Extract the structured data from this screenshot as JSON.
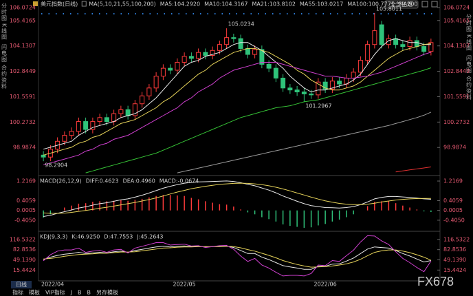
{
  "title": "美元指数(日线)",
  "top_button": "全部主题",
  "side_tabs": [
    "分时图",
    "K线图",
    "闪电图",
    "合约资料"
  ],
  "timeframe": "日线",
  "toolbar": [
    "指标",
    "模板",
    "VIP指标",
    "J",
    "B",
    "B",
    "另存模板"
  ],
  "watermark": "FX678",
  "chart_data": [
    {
      "type": "candlestick",
      "indicator": "MA(5,10,21,55,100,200)",
      "categories": [
        "2022/04",
        null,
        null,
        null,
        null,
        null,
        null,
        null,
        null,
        null,
        null,
        null,
        null,
        null,
        null,
        null,
        null,
        null,
        null,
        null,
        "2022/05",
        null,
        null,
        null,
        null,
        null,
        null,
        null,
        null,
        null,
        null,
        null,
        null,
        null,
        null,
        null,
        null,
        null,
        null,
        null,
        "2022/06",
        null,
        null,
        null,
        null,
        null,
        null,
        null,
        null,
        null,
        null,
        null,
        null,
        null,
        null,
        null
      ],
      "open": [
        98.6,
        98.5,
        98.9,
        99.3,
        99.6,
        99.8,
        100.3,
        99.9,
        100.3,
        100.5,
        100.3,
        100.7,
        100.9,
        100.6,
        101.2,
        101.6,
        102.0,
        102.6,
        103.0,
        102.9,
        103.3,
        103.6,
        103.5,
        103.8,
        103.65,
        103.9,
        104.2,
        104.55,
        104.5,
        104.0,
        103.7,
        103.95,
        103.2,
        103.0,
        102.5,
        102.0,
        101.9,
        101.8,
        101.7,
        101.65,
        102.3,
        101.95,
        102.35,
        102.2,
        102.5,
        102.8,
        103.4,
        104.2,
        105.2,
        104.2,
        104.5,
        104.2,
        104.1,
        104.4,
        104.1,
        103.85
      ],
      "high": [
        98.8,
        99.1,
        99.5,
        99.8,
        100.0,
        100.5,
        100.5,
        100.5,
        100.7,
        100.7,
        100.9,
        101.1,
        101.1,
        101.4,
        101.8,
        102.2,
        102.8,
        103.2,
        103.2,
        103.5,
        103.8,
        103.8,
        104.0,
        104.0,
        104.1,
        104.4,
        105.0234,
        104.75,
        104.7,
        104.2,
        104.15,
        104.15,
        103.4,
        103.2,
        102.7,
        102.2,
        102.1,
        102.0,
        101.9,
        102.5,
        102.5,
        102.55,
        102.55,
        102.7,
        103.0,
        103.6,
        104.4,
        105.8011,
        105.4,
        104.7,
        104.7,
        104.4,
        104.6,
        104.6,
        104.3,
        104.5
      ],
      "low": [
        98.2904,
        98.3,
        98.7,
        99.1,
        99.4,
        99.6,
        99.7,
        99.7,
        100.1,
        100.1,
        100.1,
        100.5,
        100.4,
        100.4,
        101.0,
        101.4,
        101.8,
        102.4,
        102.7,
        102.7,
        103.1,
        103.3,
        103.3,
        103.45,
        103.45,
        103.7,
        104.0,
        104.3,
        103.8,
        103.5,
        103.5,
        103.0,
        102.8,
        102.3,
        101.8,
        101.7,
        101.6,
        101.2967,
        101.45,
        101.45,
        101.75,
        101.75,
        102.0,
        102.0,
        102.3,
        102.6,
        103.2,
        104.0,
        104.0,
        104.0,
        104.0,
        103.9,
        103.9,
        103.9,
        103.65,
        103.65
      ],
      "close": [
        98.5,
        98.9,
        99.3,
        99.6,
        99.8,
        100.3,
        99.9,
        100.3,
        100.5,
        100.3,
        100.7,
        100.9,
        100.6,
        101.2,
        101.6,
        102.0,
        102.6,
        103.0,
        102.9,
        103.3,
        103.6,
        103.5,
        103.8,
        103.65,
        103.9,
        104.2,
        104.55,
        104.5,
        104.0,
        103.7,
        103.95,
        103.2,
        103.0,
        102.5,
        102.0,
        101.9,
        101.8,
        101.7,
        101.65,
        102.3,
        101.95,
        102.35,
        102.2,
        102.5,
        102.8,
        103.4,
        104.2,
        104.9,
        104.2,
        104.5,
        104.2,
        104.1,
        104.4,
        104.1,
        103.85,
        104.3
      ],
      "up_color": "#ff3b3b",
      "down_color": "#2fc27a",
      "ylim": [
        97.67,
        106.0724
      ],
      "yticks": [
        106.0724,
        105.4165,
        104.1307,
        102.8449,
        101.5591,
        100.2732,
        98.9874
      ],
      "annotations": [
        "105.0234",
        "105.8011",
        "101.2967",
        "98.2904"
      ],
      "series": [
        {
          "name": "MA5:104.2920",
          "color": "#e8e8e8",
          "values": [
            98.9,
            99.0,
            99.1,
            99.2,
            99.3,
            99.6,
            99.8,
            100.0,
            100.1,
            100.2,
            100.3,
            100.5,
            100.6,
            100.7,
            100.9,
            101.2,
            101.5,
            101.9,
            102.3,
            102.7,
            103.1,
            103.3,
            103.4,
            103.6,
            103.7,
            103.8,
            104.0,
            104.2,
            104.3,
            104.3,
            104.1,
            103.9,
            103.6,
            103.3,
            103.0,
            102.6,
            102.3,
            102.0,
            101.8,
            101.9,
            101.9,
            102.0,
            102.1,
            102.2,
            102.4,
            102.7,
            103.2,
            103.7,
            104.1,
            104.4,
            104.5,
            104.4,
            104.3,
            104.3,
            104.2,
            104.2
          ]
        },
        {
          "name": "MA10:104.3167",
          "color": "#e6d35a",
          "values": [
            98.6,
            98.7,
            98.8,
            98.9,
            99.0,
            99.2,
            99.3,
            99.5,
            99.6,
            99.8,
            100.0,
            100.2,
            100.3,
            100.4,
            100.6,
            100.8,
            101.0,
            101.3,
            101.5,
            101.8,
            102.1,
            102.4,
            102.7,
            102.9,
            103.2,
            103.4,
            103.6,
            103.8,
            103.9,
            104.0,
            104.0,
            103.9,
            103.8,
            103.6,
            103.4,
            103.2,
            102.9,
            102.7,
            102.4,
            102.2,
            102.0,
            101.9,
            101.9,
            102.0,
            102.1,
            102.3,
            102.6,
            102.9,
            103.2,
            103.5,
            103.7,
            103.9,
            104.0,
            104.1,
            104.2,
            104.25
          ]
        },
        {
          "name": "MA21:103.8102",
          "color": "#d040d0",
          "values": [
            98.1,
            98.2,
            98.3,
            98.4,
            98.5,
            98.6,
            98.8,
            98.9,
            99.1,
            99.2,
            99.4,
            99.5,
            99.6,
            99.8,
            100.0,
            100.2,
            100.4,
            100.6,
            100.8,
            101.0,
            101.3,
            101.5,
            101.8,
            102.0,
            102.2,
            102.5,
            102.7,
            102.9,
            103.0,
            103.1,
            103.2,
            103.3,
            103.3,
            103.3,
            103.2,
            103.1,
            103.0,
            102.9,
            102.8,
            102.7,
            102.6,
            102.6,
            102.55,
            102.5,
            102.5,
            102.55,
            102.6,
            102.7,
            102.8,
            102.95,
            103.1,
            103.25,
            103.4,
            103.55,
            103.7,
            103.81
          ]
        },
        {
          "name": "MA55:103.0217",
          "color": "#36c236",
          "values": [
            null,
            null,
            null,
            null,
            null,
            null,
            97.7,
            97.8,
            97.9,
            98.0,
            98.1,
            98.2,
            98.3,
            98.4,
            98.5,
            98.6,
            98.7,
            98.85,
            99.0,
            99.15,
            99.3,
            99.45,
            99.6,
            99.75,
            99.9,
            100.05,
            100.2,
            100.35,
            100.5,
            100.6,
            100.7,
            100.8,
            100.9,
            101.0,
            101.05,
            101.1,
            101.2,
            101.3,
            101.35,
            101.4,
            101.5,
            101.6,
            101.7,
            101.8,
            101.9,
            102.0,
            102.1,
            102.2,
            102.3,
            102.4,
            102.5,
            102.6,
            102.7,
            102.8,
            102.9,
            103.0217
          ]
        },
        {
          "name": "MA100:100.7771",
          "color": "#9a9a9a",
          "values": [
            null,
            null,
            null,
            null,
            null,
            null,
            null,
            null,
            null,
            null,
            null,
            null,
            null,
            null,
            null,
            null,
            null,
            null,
            null,
            97.7,
            97.78,
            97.86,
            97.94,
            98.02,
            98.1,
            98.18,
            98.26,
            98.34,
            98.42,
            98.5,
            98.58,
            98.66,
            98.74,
            98.82,
            98.9,
            98.98,
            99.06,
            99.14,
            99.22,
            99.3,
            99.38,
            99.46,
            99.54,
            99.62,
            99.7,
            99.78,
            99.86,
            99.94,
            100.02,
            100.1,
            100.2,
            100.3,
            100.4,
            100.5,
            100.62,
            100.7771
          ]
        },
        {
          "name": "MA200",
          "color": "#e03030",
          "values": [
            null,
            null,
            null,
            null,
            null,
            null,
            null,
            null,
            null,
            null,
            null,
            null,
            null,
            null,
            null,
            null,
            null,
            null,
            null,
            null,
            null,
            null,
            null,
            null,
            null,
            null,
            null,
            null,
            null,
            null,
            null,
            null,
            null,
            null,
            null,
            null,
            null,
            null,
            null,
            null,
            null,
            null,
            null,
            null,
            null,
            null,
            null,
            null,
            null,
            null,
            97.75,
            97.8,
            97.85,
            97.9,
            97.95,
            98.0
          ]
        }
      ]
    },
    {
      "type": "macd",
      "indicator": "MACD(26,12,9)",
      "up_color": "#ff3b3b",
      "down_color": "#2fc27a",
      "ylim": [
        -0.75,
        1.36
      ],
      "yticks": [
        1.2169,
        0.4059,
        0.0005,
        {
          "value": -0.405,
          "label": "-0.4050"
        }
      ],
      "series": [
        {
          "name": "DIFF:0.4623",
          "color": "#e8e8e8",
          "values": [
            -0.25,
            -0.2,
            -0.12,
            -0.05,
            0.02,
            0.1,
            0.15,
            0.22,
            0.28,
            0.32,
            0.38,
            0.44,
            0.48,
            0.55,
            0.63,
            0.72,
            0.82,
            0.92,
            1.0,
            1.07,
            1.13,
            1.16,
            1.18,
            1.19,
            1.2,
            1.21,
            1.22,
            1.2,
            1.15,
            1.08,
            1.02,
            0.93,
            0.84,
            0.73,
            0.6,
            0.49,
            0.38,
            0.28,
            0.2,
            0.16,
            0.12,
            0.11,
            0.1,
            0.12,
            0.16,
            0.24,
            0.35,
            0.48,
            0.54,
            0.58,
            0.58,
            0.56,
            0.54,
            0.51,
            0.48,
            0.4623
          ]
        },
        {
          "name": "DEA:0.4960",
          "color": "#e6d35a",
          "values": [
            -0.1,
            -0.12,
            -0.12,
            -0.11,
            -0.08,
            -0.04,
            0.0,
            0.04,
            0.09,
            0.13,
            0.18,
            0.23,
            0.28,
            0.33,
            0.39,
            0.45,
            0.52,
            0.6,
            0.68,
            0.76,
            0.83,
            0.9,
            0.95,
            1.0,
            1.04,
            1.08,
            1.1,
            1.12,
            1.13,
            1.12,
            1.1,
            1.07,
            1.02,
            0.96,
            0.89,
            0.81,
            0.72,
            0.64,
            0.55,
            0.47,
            0.4,
            0.34,
            0.29,
            0.26,
            0.24,
            0.24,
            0.26,
            0.3,
            0.35,
            0.39,
            0.43,
            0.46,
            0.48,
            0.49,
            0.5,
            0.496
          ]
        },
        {
          "name": "MACD:-0.0674",
          "color": "#d040d0",
          "type": "bar",
          "values": [
            -0.3,
            -0.16,
            0.0,
            0.12,
            0.2,
            0.28,
            0.3,
            0.36,
            0.38,
            0.38,
            0.4,
            0.42,
            0.4,
            0.44,
            0.48,
            0.54,
            0.6,
            0.64,
            0.64,
            0.62,
            0.6,
            0.52,
            0.46,
            0.38,
            0.32,
            0.26,
            0.24,
            0.16,
            0.04,
            -0.08,
            -0.16,
            -0.28,
            -0.36,
            -0.46,
            -0.58,
            -0.64,
            -0.68,
            -0.72,
            -0.7,
            -0.62,
            -0.56,
            -0.46,
            -0.38,
            -0.28,
            -0.16,
            0.0,
            0.18,
            0.36,
            0.38,
            0.38,
            0.3,
            0.2,
            0.12,
            0.04,
            -0.04,
            -0.0674
          ]
        }
      ]
    },
    {
      "type": "line",
      "indicator": "KDJ(9,3,3)",
      "ylim": [
        -43,
        134.5
      ],
      "yticks": [
        116.5322,
        82.8536,
        {
          "value": 49.139,
          "label": "49.1390"
        },
        15.4424
      ],
      "series": [
        {
          "name": "K:46.9250",
          "color": "#e8e8e8",
          "values": [
            50,
            58,
            64,
            68,
            70,
            74,
            70,
            72,
            74,
            72,
            76,
            78,
            74,
            80,
            84,
            88,
            92,
            94,
            92,
            94,
            95,
            93,
            94,
            92,
            93,
            94,
            95,
            90,
            80,
            70,
            70,
            58,
            50,
            40,
            30,
            26,
            22,
            18,
            18,
            28,
            28,
            35,
            36,
            45,
            55,
            70,
            85,
            92,
            90,
            88,
            80,
            70,
            62,
            52,
            42,
            46.925
          ]
        },
        {
          "name": "D:47.7553",
          "color": "#e6d35a",
          "values": [
            52,
            54,
            57,
            61,
            64,
            67,
            68,
            69,
            71,
            71,
            73,
            75,
            75,
            76,
            79,
            82,
            85,
            88,
            89,
            91,
            92,
            92,
            93,
            93,
            93,
            93,
            94,
            93,
            89,
            83,
            78,
            71,
            64,
            56,
            47,
            40,
            34,
            29,
            25,
            26,
            27,
            29,
            32,
            36,
            42,
            51,
            63,
            74,
            79,
            82,
            82,
            78,
            73,
            66,
            58,
            47.7553
          ]
        },
        {
          "name": "J:45.2643",
          "color": "#d040d0",
          "values": [
            46,
            66,
            78,
            82,
            82,
            88,
            74,
            78,
            80,
            74,
            82,
            84,
            72,
            88,
            94,
            100,
            106,
            106,
            98,
            100,
            101,
            95,
            96,
            90,
            93,
            96,
            97,
            84,
            62,
            44,
            54,
            32,
            22,
            8,
            -4,
            -2,
            -2,
            -4,
            4,
            32,
            30,
            47,
            44,
            63,
            81,
            108,
            129,
            128,
            112,
            100,
            76,
            54,
            40,
            24,
            10,
            45.2643
          ]
        }
      ]
    }
  ]
}
